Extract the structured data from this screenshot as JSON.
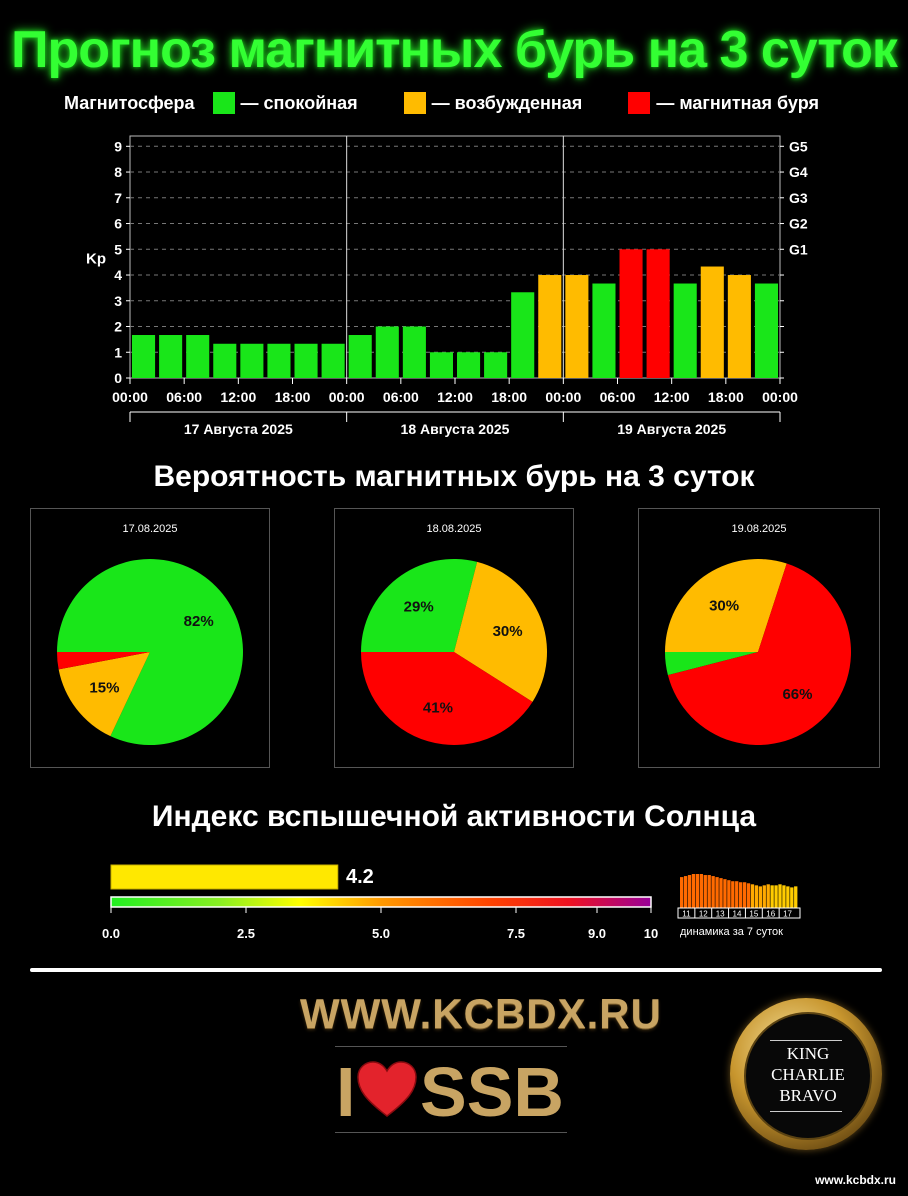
{
  "title": "Прогноз магнитных бурь на 3 суток",
  "legend": {
    "label": "Магнитосфера",
    "items": [
      {
        "text": "— спокойная",
        "color": "#19e619"
      },
      {
        "text": "— возбужденная",
        "color": "#ffbb00"
      },
      {
        "text": "— магнитная буря",
        "color": "#ff0000"
      }
    ]
  },
  "chart_data": [
    {
      "type": "bar",
      "ylabel": "Kp",
      "ylim": [
        0,
        9
      ],
      "yticks": [
        "0",
        "1",
        "2",
        "3",
        "4",
        "5",
        "6",
        "7",
        "8",
        "9"
      ],
      "right_ticks": [
        {
          "label": "G1",
          "kp": 5
        },
        {
          "label": "G2",
          "kp": 6
        },
        {
          "label": "G3",
          "kp": 7
        },
        {
          "label": "G4",
          "kp": 8
        },
        {
          "label": "G5",
          "kp": 9
        }
      ],
      "grid": true,
      "x_tick_labels": [
        "00:00",
        "06:00",
        "12:00",
        "18:00",
        "00:00",
        "06:00",
        "12:00",
        "18:00",
        "00:00",
        "06:00",
        "12:00",
        "18:00",
        "00:00"
      ],
      "days": [
        "17 Августа 2025",
        "18 Августа 2025",
        "19 Августа 2025"
      ],
      "values": [
        1.67,
        1.67,
        1.67,
        1.33,
        1.33,
        1.33,
        1.33,
        1.33,
        1.67,
        2.0,
        2.0,
        1.0,
        1.0,
        1.0,
        3.33,
        4.0,
        4.0,
        3.67,
        5.0,
        5.0,
        3.67,
        4.33,
        4.0,
        3.67
      ],
      "colors": [
        "#19e619",
        "#19e619",
        "#19e619",
        "#19e619",
        "#19e619",
        "#19e619",
        "#19e619",
        "#19e619",
        "#19e619",
        "#19e619",
        "#19e619",
        "#19e619",
        "#19e619",
        "#19e619",
        "#19e619",
        "#ffbb00",
        "#ffbb00",
        "#19e619",
        "#ff0000",
        "#ff0000",
        "#19e619",
        "#ffbb00",
        "#ffbb00",
        "#19e619"
      ]
    },
    {
      "type": "pie",
      "title": "17.08.2025",
      "slices": [
        {
          "name": "спокойная",
          "value": 82,
          "color": "#19e619",
          "label": "82%"
        },
        {
          "name": "возбужденная",
          "value": 15,
          "color": "#ffbb00",
          "label": "15%"
        },
        {
          "name": "магнитная буря",
          "value": 3,
          "color": "#ff0000",
          "label": ""
        }
      ]
    },
    {
      "type": "pie",
      "title": "18.08.2025",
      "slices": [
        {
          "name": "спокойная",
          "value": 29,
          "color": "#19e619",
          "label": "29%"
        },
        {
          "name": "возбужденная",
          "value": 30,
          "color": "#ffbb00",
          "label": "30%"
        },
        {
          "name": "магнитная буря",
          "value": 41,
          "color": "#ff0000",
          "label": "41%"
        }
      ]
    },
    {
      "type": "pie",
      "title": "19.08.2025",
      "slices": [
        {
          "name": "спокойная",
          "value": 4,
          "color": "#19e619",
          "label": ""
        },
        {
          "name": "возбужденная",
          "value": 30,
          "color": "#ffbb00",
          "label": "30%"
        },
        {
          "name": "магнитная буря",
          "value": 66,
          "color": "#ff0000",
          "label": "66%"
        }
      ]
    }
  ],
  "prob_title": "Вероятность магнитных бурь на 3 суток",
  "flare": {
    "title": "Индекс вспышечной активности Солнца",
    "value": 4.2,
    "value_text": "4.2",
    "scale_max": 10,
    "ticks": [
      {
        "v": 0,
        "t": "0.0"
      },
      {
        "v": 2.5,
        "t": "2.5"
      },
      {
        "v": 5,
        "t": "5.0"
      },
      {
        "v": 7.5,
        "t": "7.5"
      },
      {
        "v": 9,
        "t": "9.0"
      },
      {
        "v": 10,
        "t": "10"
      }
    ],
    "dynamics_label": "динамика за 7 суток",
    "dynamics_days": [
      "11",
      "12",
      "13",
      "14",
      "15",
      "16",
      "17"
    ],
    "dynamics_values": [
      3.0,
      3.1,
      3.2,
      3.3,
      3.3,
      3.3,
      3.2,
      3.2,
      3.1,
      3.0,
      2.9,
      2.8,
      2.7,
      2.6,
      2.6,
      2.5,
      2.5,
      2.4,
      2.3,
      2.2,
      2.1,
      2.2,
      2.3,
      2.2,
      2.2,
      2.3,
      2.2,
      2.1,
      2.0,
      2.1
    ]
  },
  "site_url": "WWW.KCBDX.RU",
  "ssb_text": "SSB",
  "ssb_i": "I",
  "seal": [
    "KING",
    "CHARLIE",
    "BRAVO"
  ],
  "footer_url": "www.kcbdx.ru"
}
